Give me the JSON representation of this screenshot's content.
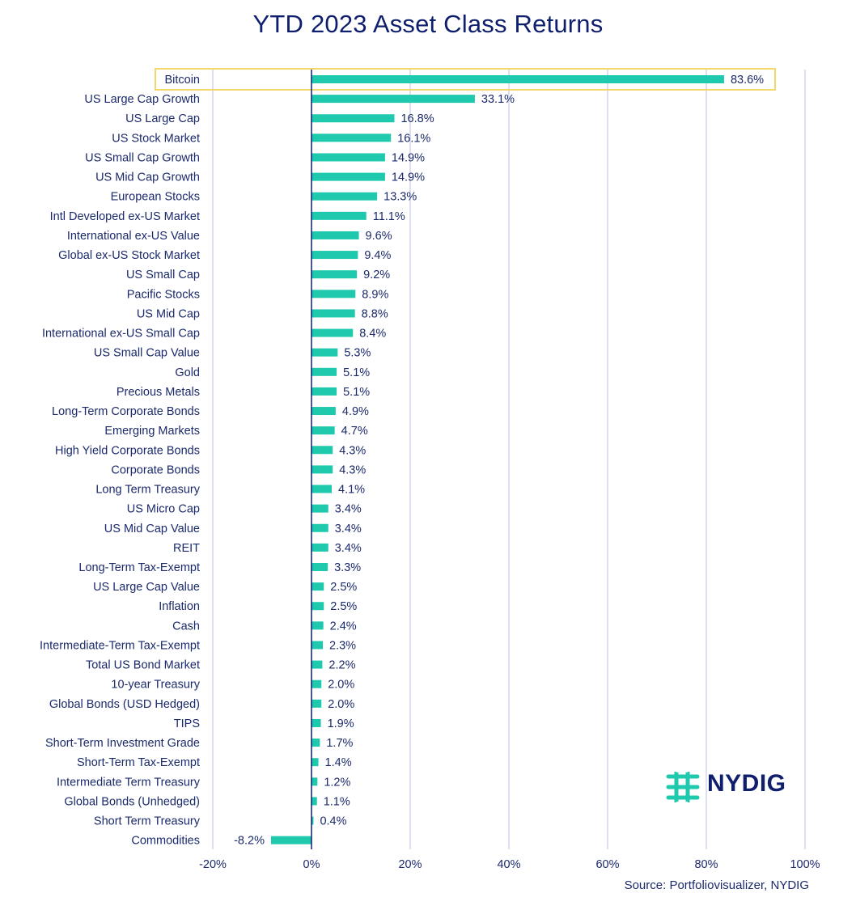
{
  "chart_data": {
    "type": "bar",
    "orientation": "horizontal",
    "title": "YTD 2023 Asset Class Returns",
    "xlabel": "",
    "ylabel": "",
    "xlim": [
      -20,
      100
    ],
    "x_ticks": [
      -20,
      0,
      20,
      40,
      60,
      80,
      100
    ],
    "x_tick_labels": [
      "-20%",
      "0%",
      "20%",
      "40%",
      "60%",
      "80%",
      "100%"
    ],
    "grid": true,
    "highlight": "Bitcoin",
    "categories": [
      "Bitcoin",
      "US Large Cap Growth",
      "US Large Cap",
      "US Stock Market",
      "US Small Cap Growth",
      "US Mid Cap Growth",
      "European Stocks",
      "Intl Developed ex-US Market",
      "International ex-US Value",
      "Global ex-US Stock Market",
      "US Small Cap",
      "Pacific Stocks",
      "US Mid Cap",
      "International ex-US Small Cap",
      "US Small Cap Value",
      "Gold",
      "Precious Metals",
      "Long-Term Corporate Bonds",
      "Emerging Markets",
      "High Yield Corporate Bonds",
      "Corporate Bonds",
      "Long Term Treasury",
      "US Micro Cap",
      "US Mid Cap Value",
      "REIT",
      "Long-Term Tax-Exempt",
      "US Large Cap Value",
      "Inflation",
      "Cash",
      "Intermediate-Term Tax-Exempt",
      "Total US Bond Market",
      "10-year Treasury",
      "Global Bonds (USD Hedged)",
      "TIPS",
      "Short-Term Investment Grade",
      "Short-Term Tax-Exempt",
      "Intermediate Term Treasury",
      "Global Bonds (Unhedged)",
      "Short Term Treasury",
      "Commodities"
    ],
    "values": [
      83.6,
      33.1,
      16.8,
      16.1,
      14.9,
      14.9,
      13.3,
      11.1,
      9.6,
      9.4,
      9.2,
      8.9,
      8.8,
      8.4,
      5.3,
      5.1,
      5.1,
      4.9,
      4.7,
      4.3,
      4.3,
      4.1,
      3.4,
      3.4,
      3.4,
      3.3,
      2.5,
      2.5,
      2.4,
      2.3,
      2.2,
      2.0,
      2.0,
      1.9,
      1.7,
      1.4,
      1.2,
      1.1,
      0.4,
      -8.2
    ],
    "value_labels": [
      "83.6%",
      "33.1%",
      "16.8%",
      "16.1%",
      "14.9%",
      "14.9%",
      "13.3%",
      "11.1%",
      "9.6%",
      "9.4%",
      "9.2%",
      "8.9%",
      "8.8%",
      "8.4%",
      "5.3%",
      "5.1%",
      "5.1%",
      "4.9%",
      "4.7%",
      "4.3%",
      "4.3%",
      "4.1%",
      "3.4%",
      "3.4%",
      "3.4%",
      "3.3%",
      "2.5%",
      "2.5%",
      "2.4%",
      "2.3%",
      "2.2%",
      "2.0%",
      "2.0%",
      "1.9%",
      "1.7%",
      "1.4%",
      "1.2%",
      "1.1%",
      "0.4%",
      "-8.2%"
    ]
  },
  "colors": {
    "bar": "#1fc9ad",
    "text": "#1b2a6b",
    "title": "#0f1f6e",
    "grid": "#b9c0e6",
    "zero_line": "#0f1f6e",
    "highlight_border": "#f2d86a"
  },
  "source": "Source: Portfoliovisualizer, NYDIG",
  "logo": {
    "text": "NYDIG",
    "icon": "nydig-logo-icon"
  }
}
